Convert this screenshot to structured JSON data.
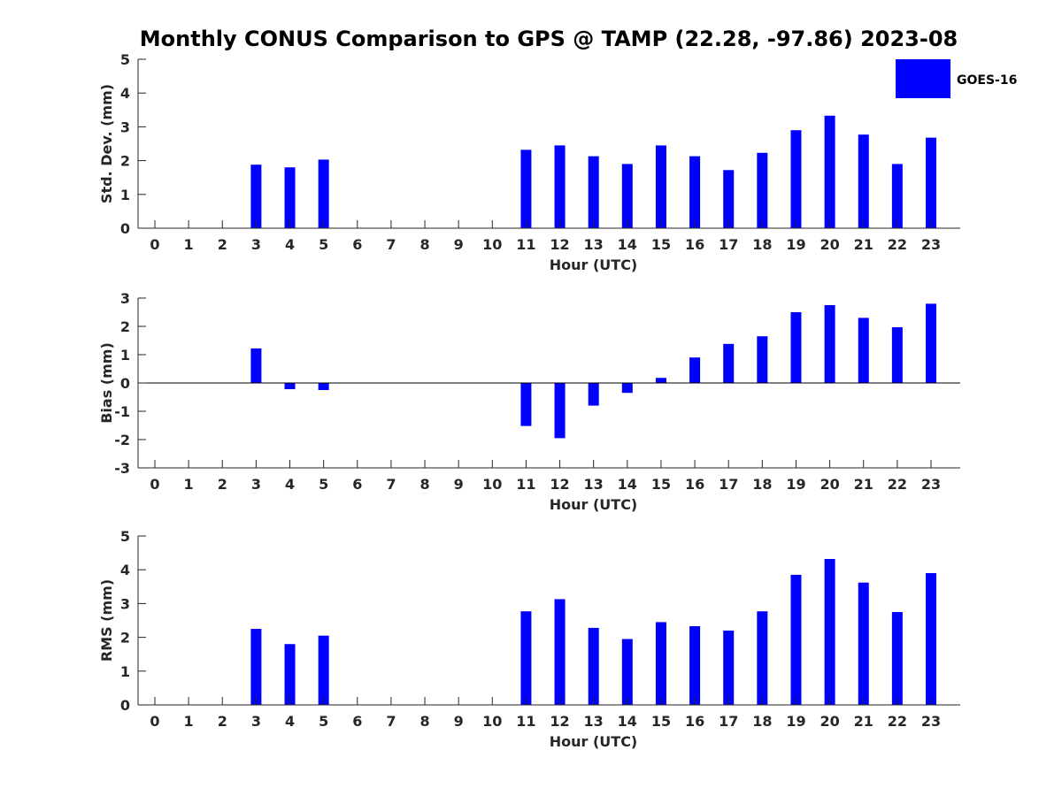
{
  "title": "Monthly CONUS Comparison to GPS @ TAMP (22.28, -97.86) 2023-08",
  "colors": {
    "bar": "#0000ff",
    "axis": "#262626"
  },
  "legend": {
    "label": "GOES-16",
    "placement": "top-right"
  },
  "chart_data": [
    {
      "type": "bar",
      "ylabel": "Std. Dev. (mm)",
      "xlabel": "Hour (UTC)",
      "ylim": [
        0,
        5
      ],
      "yticks": [
        0,
        1,
        2,
        3,
        4,
        5
      ],
      "categories": [
        "0",
        "1",
        "2",
        "3",
        "4",
        "5",
        "6",
        "7",
        "8",
        "9",
        "10",
        "11",
        "12",
        "13",
        "14",
        "15",
        "16",
        "17",
        "18",
        "19",
        "20",
        "21",
        "22",
        "23"
      ],
      "series": [
        {
          "name": "GOES-16",
          "values": [
            null,
            null,
            null,
            1.88,
            1.8,
            2.03,
            null,
            null,
            null,
            null,
            null,
            2.32,
            2.45,
            2.13,
            1.9,
            2.45,
            2.13,
            1.72,
            2.23,
            2.9,
            3.33,
            2.77,
            1.9,
            2.68
          ]
        }
      ]
    },
    {
      "type": "bar",
      "ylabel": "Bias (mm)",
      "xlabel": "Hour (UTC)",
      "ylim": [
        -3,
        3
      ],
      "yticks": [
        -3,
        -2,
        -1,
        0,
        1,
        2,
        3
      ],
      "categories": [
        "0",
        "1",
        "2",
        "3",
        "4",
        "5",
        "6",
        "7",
        "8",
        "9",
        "10",
        "11",
        "12",
        "13",
        "14",
        "15",
        "16",
        "17",
        "18",
        "19",
        "20",
        "21",
        "22",
        "23"
      ],
      "series": [
        {
          "name": "GOES-16",
          "values": [
            null,
            null,
            null,
            1.22,
            -0.22,
            -0.25,
            null,
            null,
            null,
            null,
            null,
            -1.52,
            -1.95,
            -0.8,
            -0.35,
            0.18,
            0.9,
            1.38,
            1.65,
            2.5,
            2.75,
            2.3,
            1.97,
            2.8
          ]
        }
      ]
    },
    {
      "type": "bar",
      "ylabel": "RMS (mm)",
      "xlabel": "Hour (UTC)",
      "ylim": [
        0,
        5
      ],
      "yticks": [
        0,
        1,
        2,
        3,
        4,
        5
      ],
      "categories": [
        "0",
        "1",
        "2",
        "3",
        "4",
        "5",
        "6",
        "7",
        "8",
        "9",
        "10",
        "11",
        "12",
        "13",
        "14",
        "15",
        "16",
        "17",
        "18",
        "19",
        "20",
        "21",
        "22",
        "23"
      ],
      "series": [
        {
          "name": "GOES-16",
          "values": [
            null,
            null,
            null,
            2.25,
            1.8,
            2.05,
            null,
            null,
            null,
            null,
            null,
            2.77,
            3.13,
            2.28,
            1.95,
            2.45,
            2.33,
            2.2,
            2.77,
            3.85,
            4.32,
            3.62,
            2.75,
            3.9
          ]
        }
      ]
    }
  ]
}
